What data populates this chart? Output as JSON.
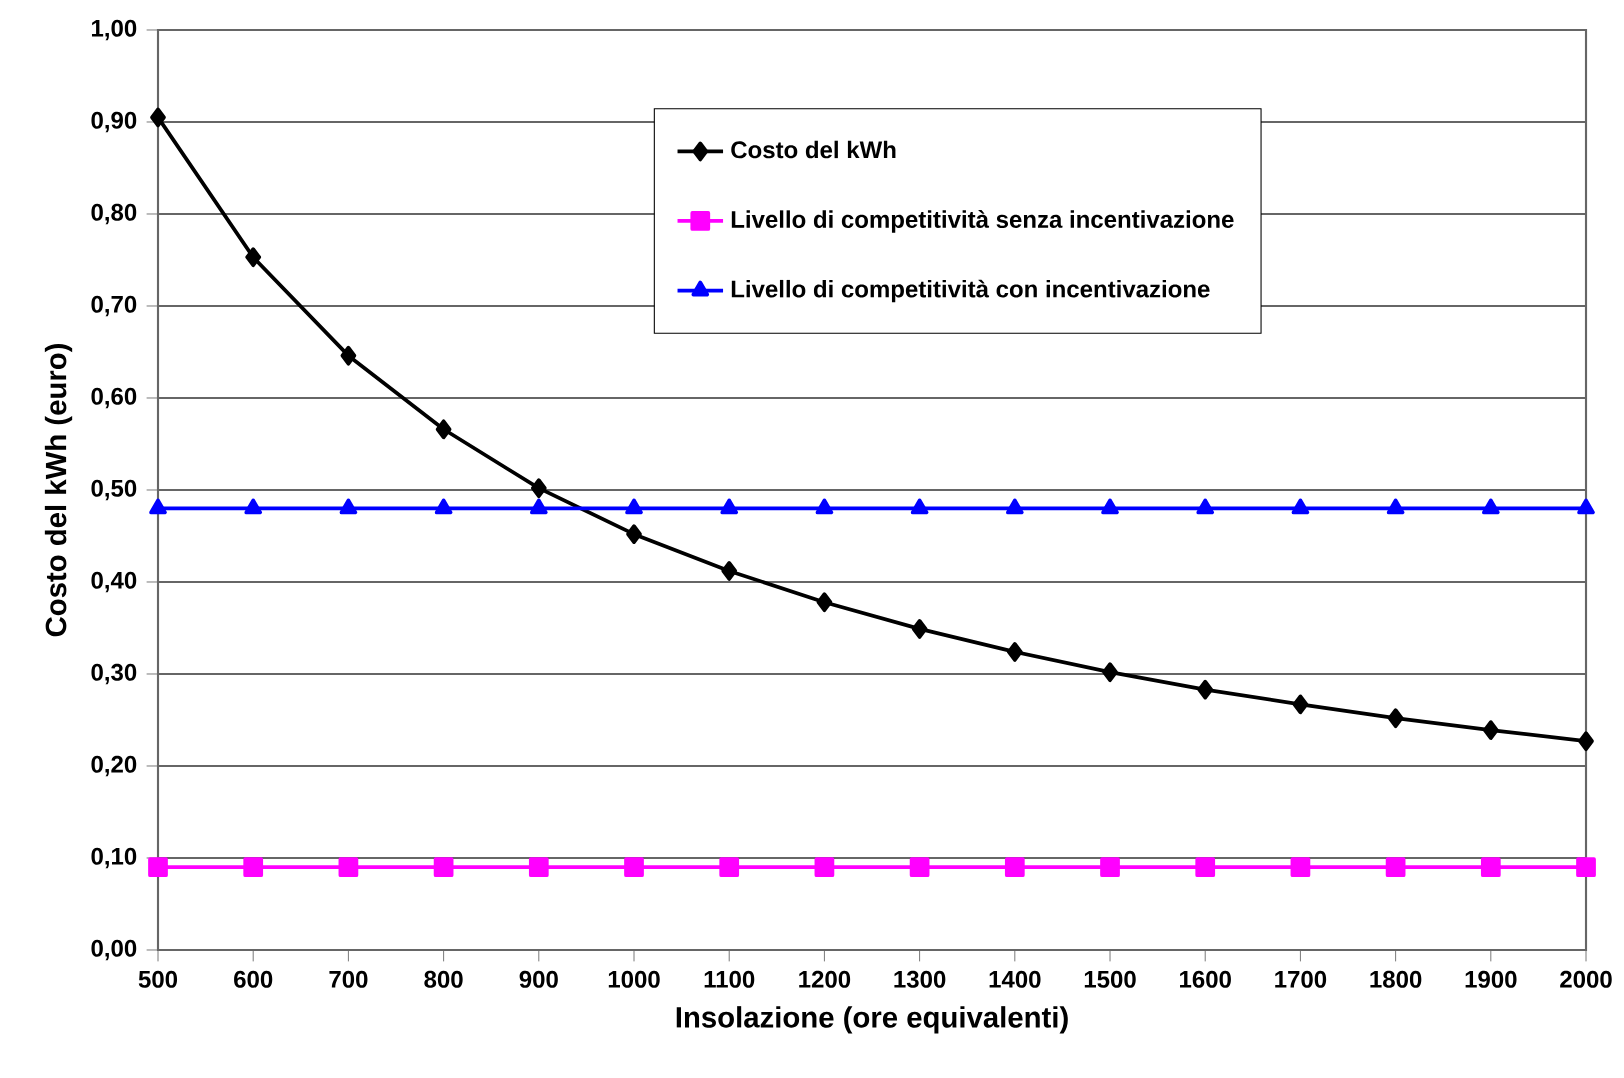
{
  "chart_data": {
    "type": "line",
    "xlabel": "Insolazione (ore equivalenti)",
    "ylabel": "Costo del kWh (euro)",
    "x": [
      500,
      600,
      700,
      800,
      900,
      1000,
      1100,
      1200,
      1300,
      1400,
      1500,
      1600,
      1700,
      1800,
      1900,
      2000
    ],
    "series": [
      {
        "name": "Costo del kWh",
        "color": "#000000",
        "marker": "diamond",
        "values": [
          0.905,
          0.753,
          0.646,
          0.566,
          0.502,
          0.452,
          0.412,
          0.378,
          0.349,
          0.324,
          0.302,
          0.283,
          0.267,
          0.252,
          0.239,
          0.227
        ]
      },
      {
        "name": "Livello di competitività senza incentivazione",
        "color": "#ff00ff",
        "marker": "square",
        "values": [
          0.09,
          0.09,
          0.09,
          0.09,
          0.09,
          0.09,
          0.09,
          0.09,
          0.09,
          0.09,
          0.09,
          0.09,
          0.09,
          0.09,
          0.09,
          0.09
        ]
      },
      {
        "name": "Livello di competitività con incentivazione",
        "color": "#0000ff",
        "marker": "triangle",
        "values": [
          0.48,
          0.48,
          0.48,
          0.48,
          0.48,
          0.48,
          0.48,
          0.48,
          0.48,
          0.48,
          0.48,
          0.48,
          0.48,
          0.48,
          0.48,
          0.48
        ]
      }
    ],
    "xlim": [
      500,
      2000
    ],
    "ylim": [
      0,
      1
    ],
    "xticks": [
      500,
      600,
      700,
      800,
      900,
      1000,
      1100,
      1200,
      1300,
      1400,
      1500,
      1600,
      1700,
      1800,
      1900,
      2000
    ],
    "yticks": [
      {
        "value": 0,
        "label": "0,00"
      },
      {
        "value": 0.1,
        "label": "0,10"
      },
      {
        "value": 0.2,
        "label": "0,20"
      },
      {
        "value": 0.3,
        "label": "0,30"
      },
      {
        "value": 0.4,
        "label": "0,40"
      },
      {
        "value": 0.5,
        "label": "0,50"
      },
      {
        "value": 0.6,
        "label": "0,60"
      },
      {
        "value": 0.7,
        "label": "0,70"
      },
      {
        "value": 0.8,
        "label": "0,80"
      },
      {
        "value": 0.9,
        "label": "0,90"
      },
      {
        "value": 1,
        "label": "1,00"
      }
    ],
    "grid": "y",
    "legend": "top"
  }
}
